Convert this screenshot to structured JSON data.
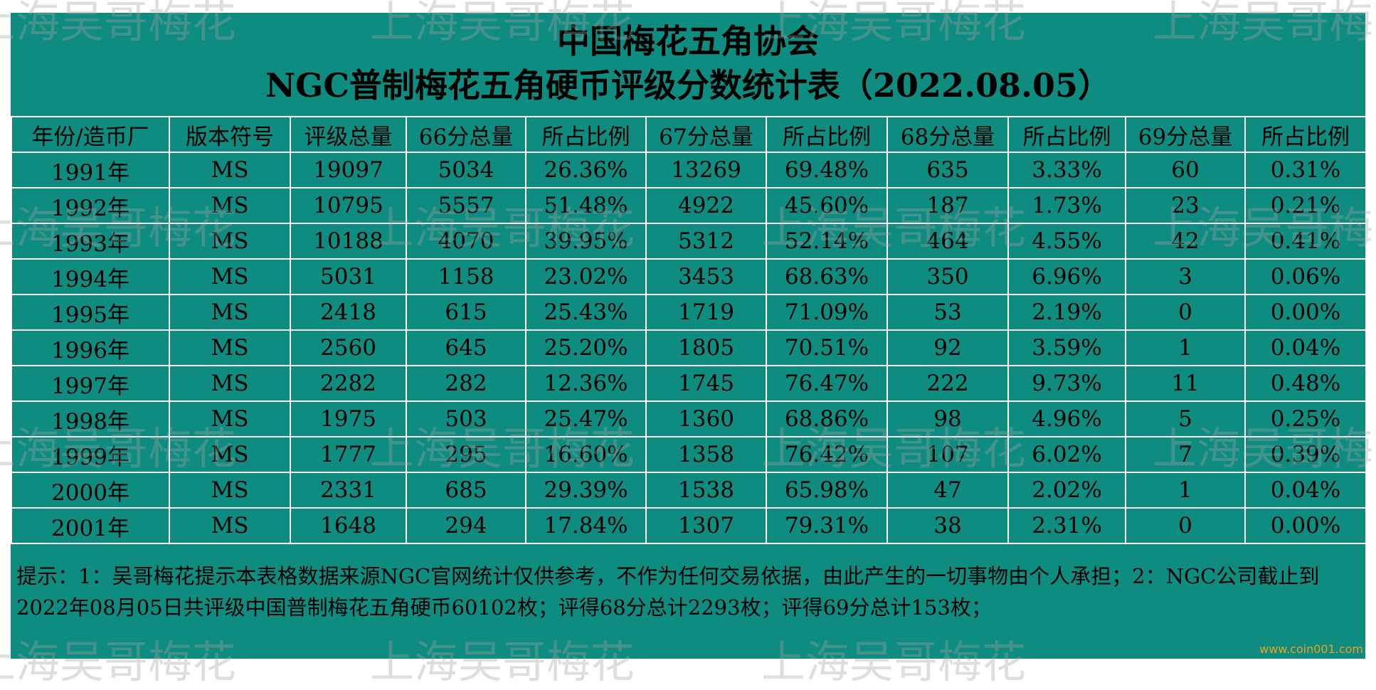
{
  "title": "中国梅花五角协会",
  "subtitle": "NGC普制梅花五角硬币评级分数统计表（2022.08.05）",
  "table": {
    "header": [
      "年份/造币厂",
      "版本符号",
      "评级总量",
      "66分总量",
      "所占比例",
      "67分总量",
      "所占比例",
      "68分总量",
      "所占比例",
      "69分总量",
      "所占比例"
    ],
    "rows": [
      [
        "1991年",
        "MS",
        "19097",
        "5034",
        "26.36%",
        "13269",
        "69.48%",
        "635",
        "3.33%",
        "60",
        "0.31%"
      ],
      [
        "1992年",
        "MS",
        "10795",
        "5557",
        "51.48%",
        "4922",
        "45.60%",
        "187",
        "1.73%",
        "23",
        "0.21%"
      ],
      [
        "1993年",
        "MS",
        "10188",
        "4070",
        "39.95%",
        "5312",
        "52.14%",
        "464",
        "4.55%",
        "42",
        "0.41%"
      ],
      [
        "1994年",
        "MS",
        "5031",
        "1158",
        "23.02%",
        "3453",
        "68.63%",
        "350",
        "6.96%",
        "3",
        "0.06%"
      ],
      [
        "1995年",
        "MS",
        "2418",
        "615",
        "25.43%",
        "1719",
        "71.09%",
        "53",
        "2.19%",
        "0",
        "0.00%"
      ],
      [
        "1996年",
        "MS",
        "2560",
        "645",
        "25.20%",
        "1805",
        "70.51%",
        "92",
        "3.59%",
        "1",
        "0.04%"
      ],
      [
        "1997年",
        "MS",
        "2282",
        "282",
        "12.36%",
        "1745",
        "76.47%",
        "222",
        "9.73%",
        "11",
        "0.48%"
      ],
      [
        "1998年",
        "MS",
        "1975",
        "503",
        "25.47%",
        "1360",
        "68.86%",
        "98",
        "4.96%",
        "5",
        "0.25%"
      ],
      [
        "1999年",
        "MS",
        "1777",
        "295",
        "16.60%",
        "1358",
        "76.42%",
        "107",
        "6.02%",
        "7",
        "0.39%"
      ],
      [
        "2000年",
        "MS",
        "2331",
        "685",
        "29.39%",
        "1538",
        "65.98%",
        "47",
        "2.02%",
        "1",
        "0.04%"
      ],
      [
        "2001年",
        "MS",
        "1648",
        "294",
        "17.84%",
        "1307",
        "79.31%",
        "38",
        "2.31%",
        "0",
        "0.00%"
      ]
    ]
  },
  "note": "提示：1：吴哥梅花提示本表格数据来源NGC官网统计仅供参考，不作为任何交易依据，由此产生的一切事物由个人承担；2：NGC公司截止到2022年08月05日共评级中国普制梅花五角硬币60102枚；评得68分总计2293枚；评得69分总计153枚；",
  "watermark": "上海吴哥梅花",
  "site": "www.coin001.com"
}
